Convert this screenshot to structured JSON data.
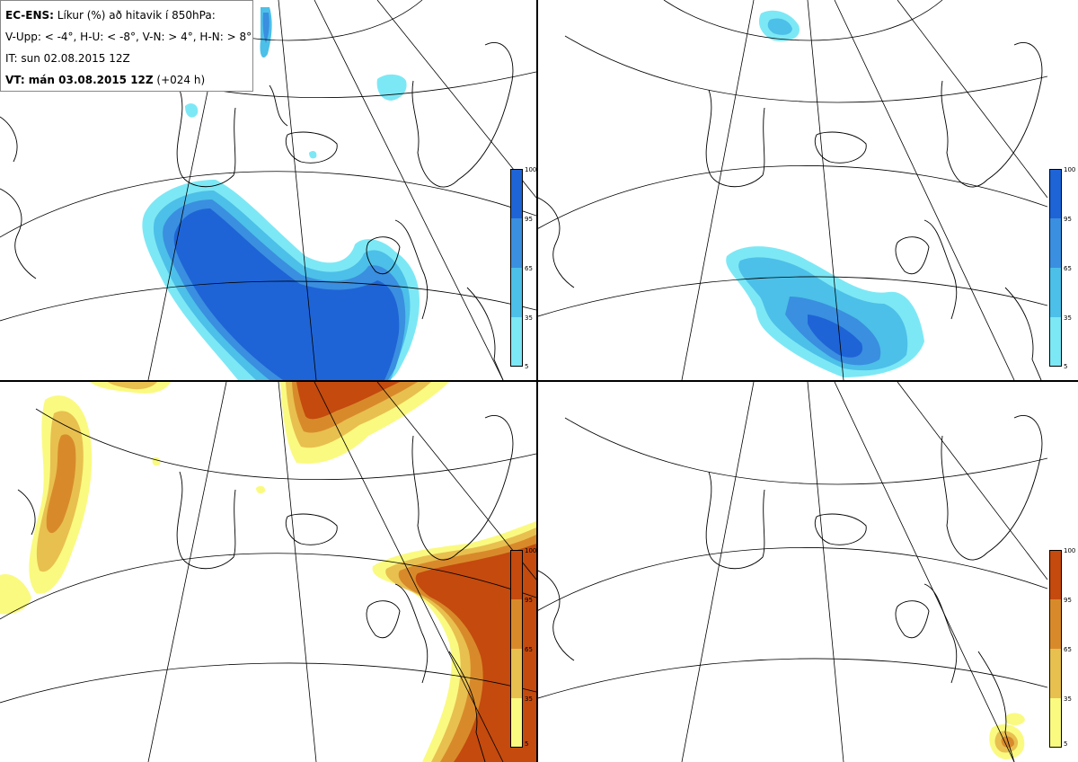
{
  "legend": {
    "line1_bold": "EC-ENS:",
    "line1_rest": " Líkur (%) að hitavik í 850hPa:",
    "line2": "V-Upp: < -4°, H-U: < -8°, V-N: > 4°, H-N: > 8°",
    "line3": "IT: sun 02.08.2015 12Z",
    "line4_bold": "VT: mán 03.08.2015 12Z",
    "line4_rest": " (+024 h)"
  },
  "colorbars": {
    "cold": {
      "ticks": [
        "100",
        "95",
        "65",
        "35",
        "5"
      ],
      "colors": [
        "#1e64d6",
        "#3a8fe0",
        "#4cc0e8",
        "#7de8f5"
      ]
    },
    "warm": {
      "ticks": [
        "100",
        "95",
        "65",
        "35",
        "5"
      ],
      "colors": [
        "#c44a0e",
        "#d88a2a",
        "#e8c050",
        "#fafa80"
      ]
    }
  },
  "panels": [
    {
      "id": "cold-upper",
      "palette": "cold"
    },
    {
      "id": "cold-lower",
      "palette": "cold"
    },
    {
      "id": "warm-upper",
      "palette": "warm"
    },
    {
      "id": "warm-lower",
      "palette": "warm"
    }
  ]
}
